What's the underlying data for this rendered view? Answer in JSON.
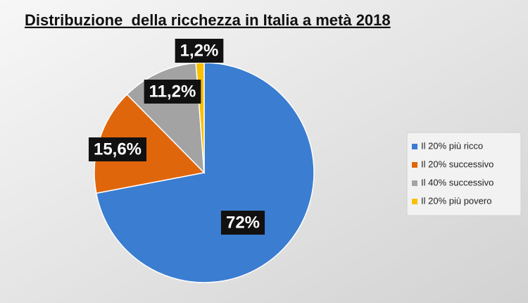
{
  "chart_data": {
    "type": "pie",
    "title": "Distribuzione  della ricchezza in Italia a metà 2018",
    "categories": [
      "Il 20% più ricco",
      "Il 20% successivo",
      "Il 40% successivo",
      "Il 20% più povero"
    ],
    "values": [
      72,
      15.6,
      11.2,
      1.2
    ],
    "value_labels": [
      "72%",
      "15,6%",
      "11,2%",
      "1,2%"
    ],
    "colors": [
      "#3b7dd0",
      "#e0660c",
      "#a3a3a3",
      "#f8c000"
    ],
    "legend": "right"
  }
}
